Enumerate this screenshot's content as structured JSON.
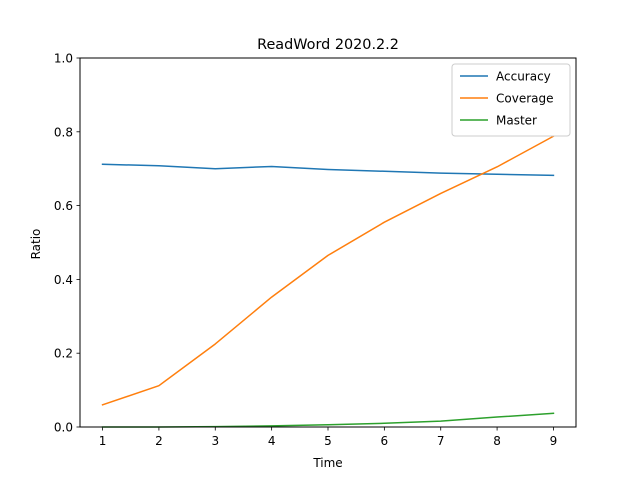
{
  "chart_data": {
    "type": "line",
    "title": "ReadWord 2020.2.2",
    "xlabel": "Time",
    "ylabel": "Ratio",
    "x": [
      1,
      2,
      3,
      4,
      5,
      6,
      7,
      8,
      9
    ],
    "xlim": [
      0.6,
      9.4
    ],
    "ylim": [
      0.0,
      1.0
    ],
    "xticks": [
      "1",
      "2",
      "3",
      "4",
      "5",
      "6",
      "7",
      "8",
      "9"
    ],
    "yticks": [
      "0.0",
      "0.2",
      "0.4",
      "0.6",
      "0.8",
      "1.0"
    ],
    "grid": false,
    "legend_position": "top-right",
    "series": [
      {
        "name": "Accuracy",
        "color": "#1f77b4",
        "values": [
          0.712,
          0.708,
          0.7,
          0.706,
          0.698,
          0.693,
          0.688,
          0.685,
          0.682
        ]
      },
      {
        "name": "Coverage",
        "color": "#ff7f0e",
        "values": [
          0.06,
          0.112,
          0.225,
          0.352,
          0.465,
          0.555,
          0.633,
          0.705,
          0.788
        ]
      },
      {
        "name": "Master",
        "color": "#2ca02c",
        "values": [
          0.0,
          0.0,
          0.001,
          0.003,
          0.006,
          0.01,
          0.016,
          0.027,
          0.037
        ]
      }
    ]
  }
}
